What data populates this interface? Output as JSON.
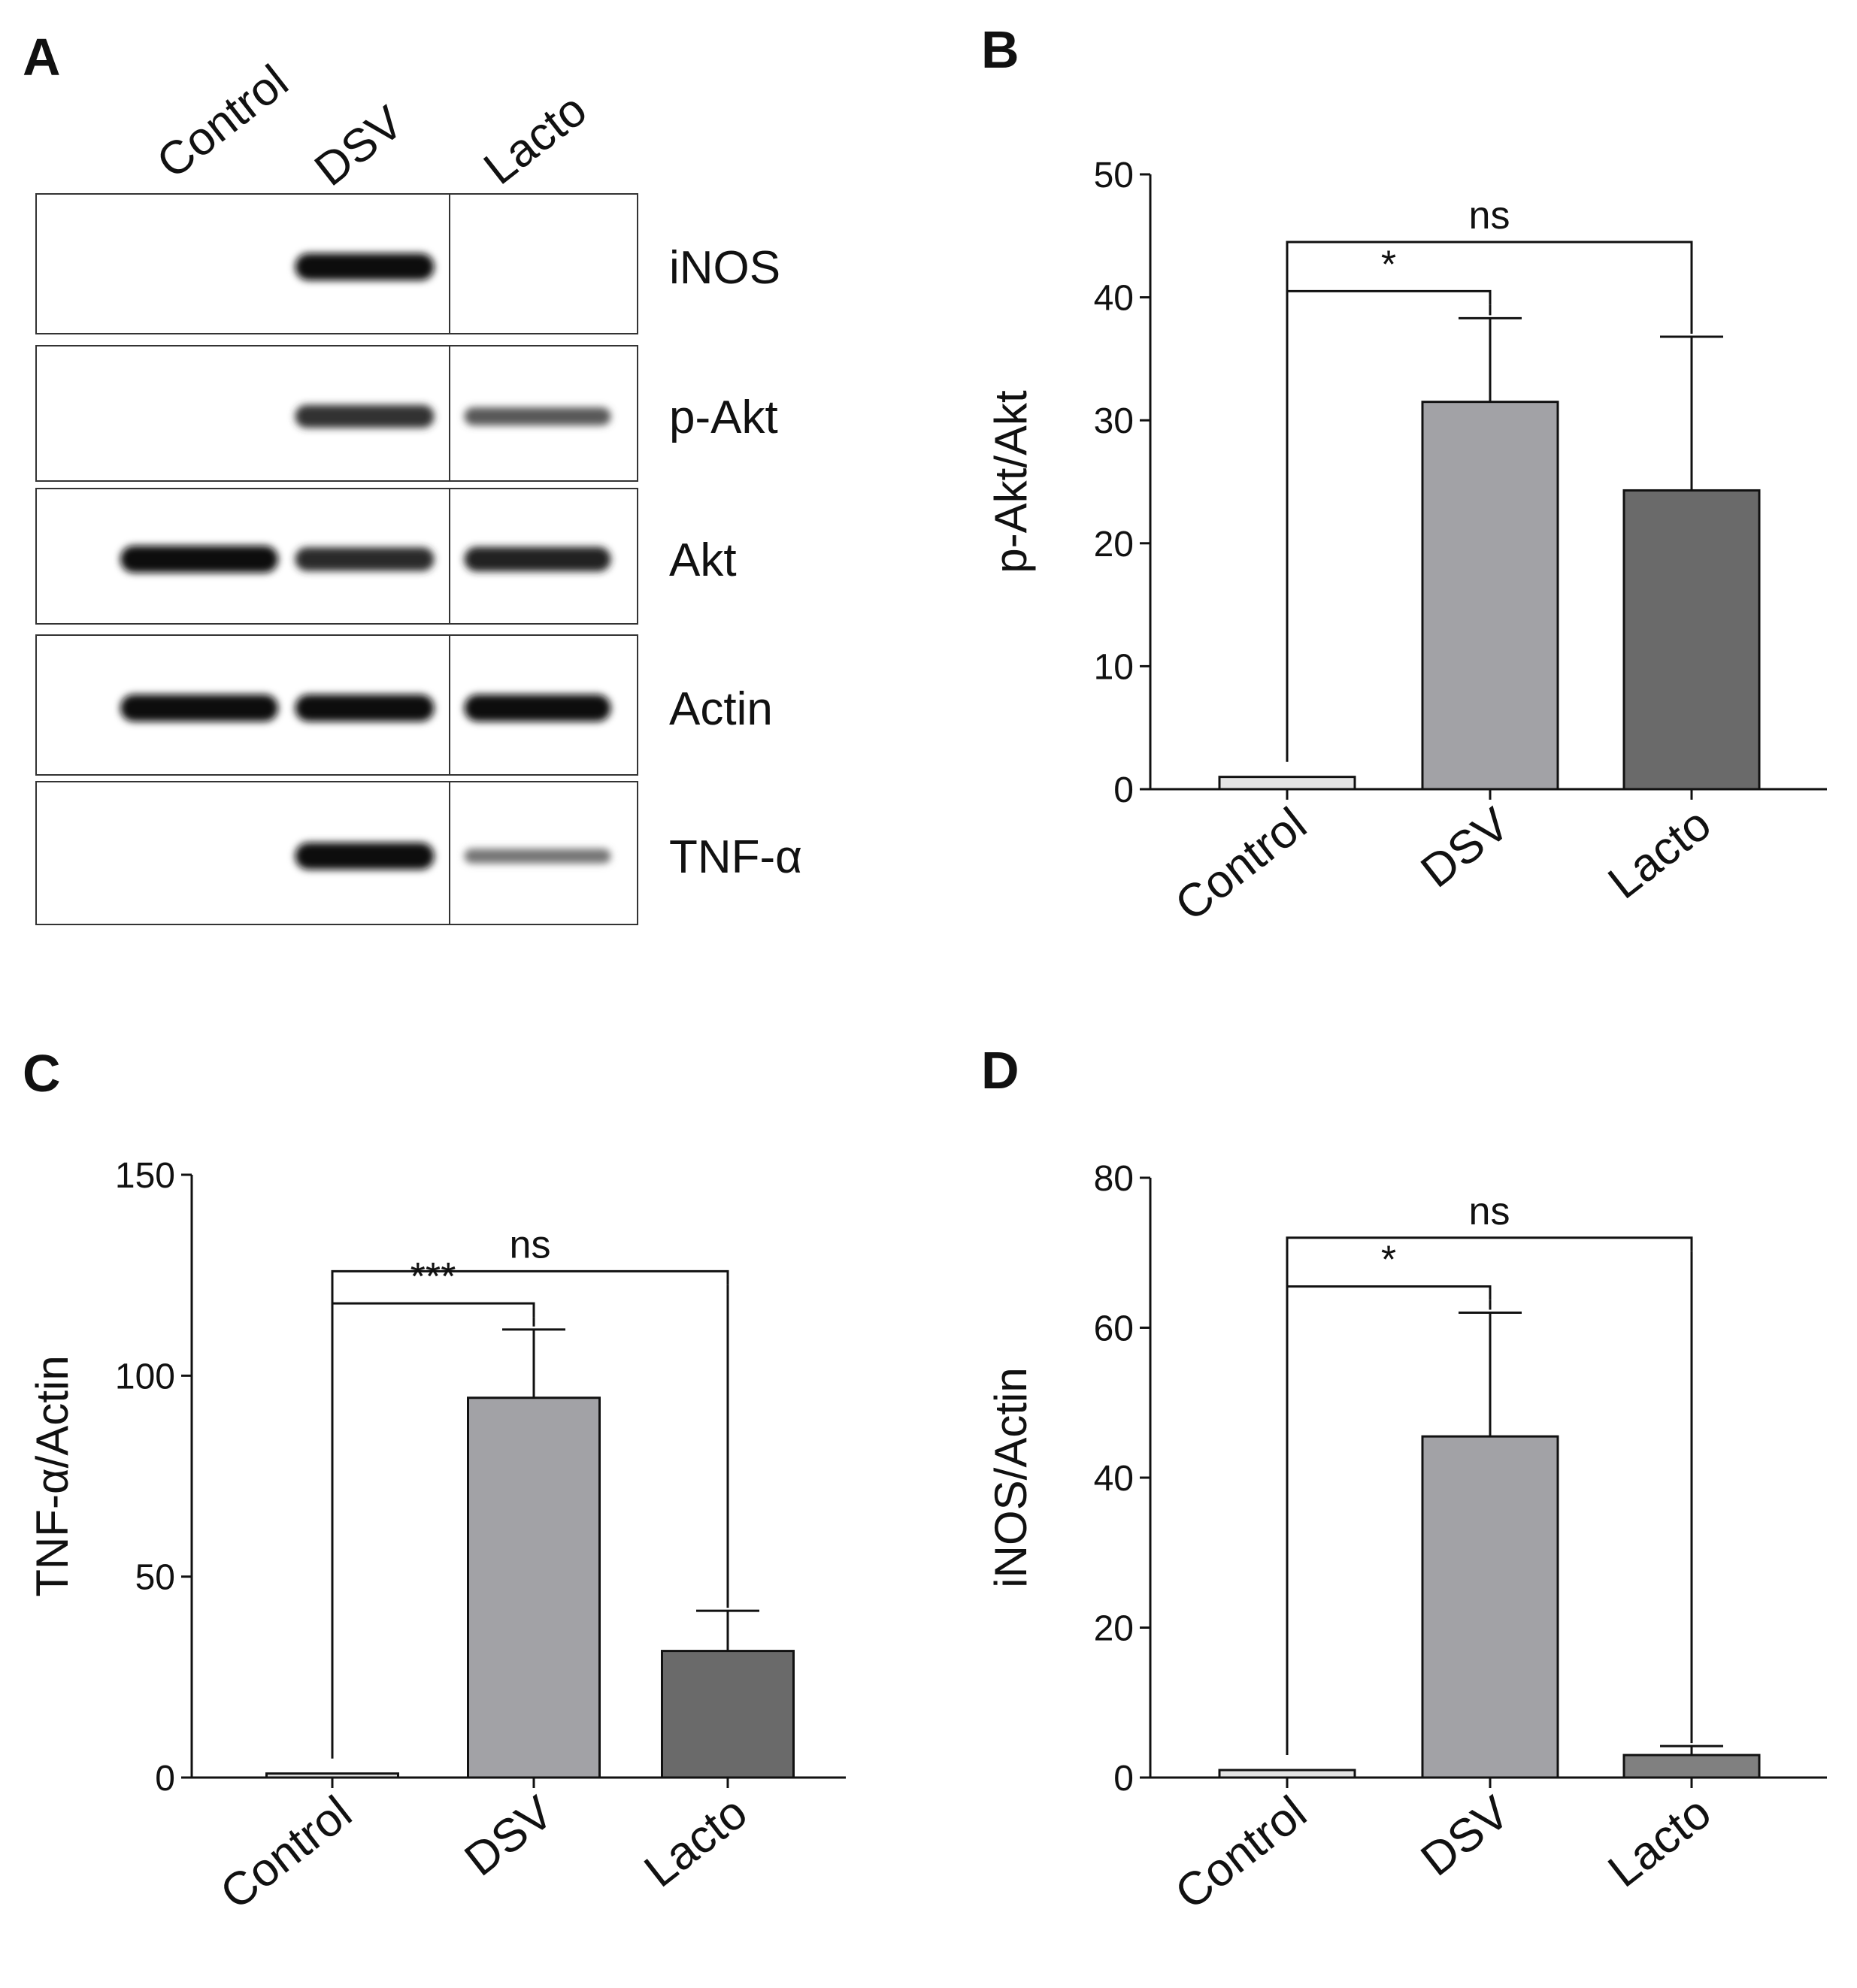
{
  "panel_a": {
    "letter": "A",
    "lanes": [
      "Control",
      "DSV",
      "Lacto"
    ],
    "blots": [
      {
        "label": "iNOS",
        "intensity": [
          0,
          1.0,
          0.0
        ]
      },
      {
        "label": "p-Akt",
        "intensity": [
          0,
          0.75,
          0.45
        ]
      },
      {
        "label": "Akt",
        "intensity": [
          1.0,
          0.8,
          0.85
        ]
      },
      {
        "label": "Actin",
        "intensity": [
          1.0,
          1.0,
          1.0
        ]
      },
      {
        "label": "TNF-α",
        "intensity": [
          0,
          1.0,
          0.25
        ]
      }
    ]
  },
  "chart_data": [
    {
      "panel": "B",
      "type": "bar",
      "categories": [
        "Control",
        "DSV",
        "Lacto"
      ],
      "values": [
        1,
        31.5,
        24.3
      ],
      "errors": [
        0,
        6.8,
        12.5
      ],
      "colors": [
        "#e4e4e4",
        "#a2a2a6",
        "#6a6a6a"
      ],
      "ylabel": "p-Akt/Akt",
      "xlabel": "",
      "title": "",
      "ylim": [
        0,
        50
      ],
      "yticks": [
        "0",
        "10",
        "20",
        "30",
        "40",
        "50"
      ],
      "annotations": [
        {
          "text": "*",
          "from": 0,
          "to": 1,
          "level": 40.5
        },
        {
          "text": "ns",
          "from": 0,
          "to": 2,
          "level": 44.5
        }
      ]
    },
    {
      "panel": "C",
      "type": "bar",
      "categories": [
        "Control",
        "DSV",
        "Lacto"
      ],
      "values": [
        1,
        94.5,
        31.5
      ],
      "errors": [
        0,
        17,
        10
      ],
      "colors": [
        "#e4e4e4",
        "#a2a2a6",
        "#6a6a6a"
      ],
      "ylabel": "TNF-α/Actin",
      "xlabel": "",
      "title": "",
      "ylim": [
        0,
        150
      ],
      "yticks": [
        "0",
        "50",
        "100",
        "150"
      ],
      "annotations": [
        {
          "text": "***",
          "from": 0,
          "to": 1,
          "level": 118
        },
        {
          "text": "ns",
          "from": 0,
          "to": 2,
          "level": 126
        }
      ]
    },
    {
      "panel": "D",
      "type": "bar",
      "categories": [
        "Control",
        "DSV",
        "Lacto"
      ],
      "values": [
        1,
        45.5,
        3
      ],
      "errors": [
        0,
        16.5,
        1.2
      ],
      "colors": [
        "#e4e4e4",
        "#a2a2a6",
        "#808080"
      ],
      "ylabel": "iNOS/Actin",
      "xlabel": "",
      "title": "",
      "ylim": [
        0,
        80
      ],
      "yticks": [
        "0",
        "20",
        "40",
        "60",
        "80"
      ],
      "annotations": [
        {
          "text": "*",
          "from": 0,
          "to": 1,
          "level": 65.5
        },
        {
          "text": "ns",
          "from": 0,
          "to": 2,
          "level": 72
        }
      ]
    }
  ]
}
